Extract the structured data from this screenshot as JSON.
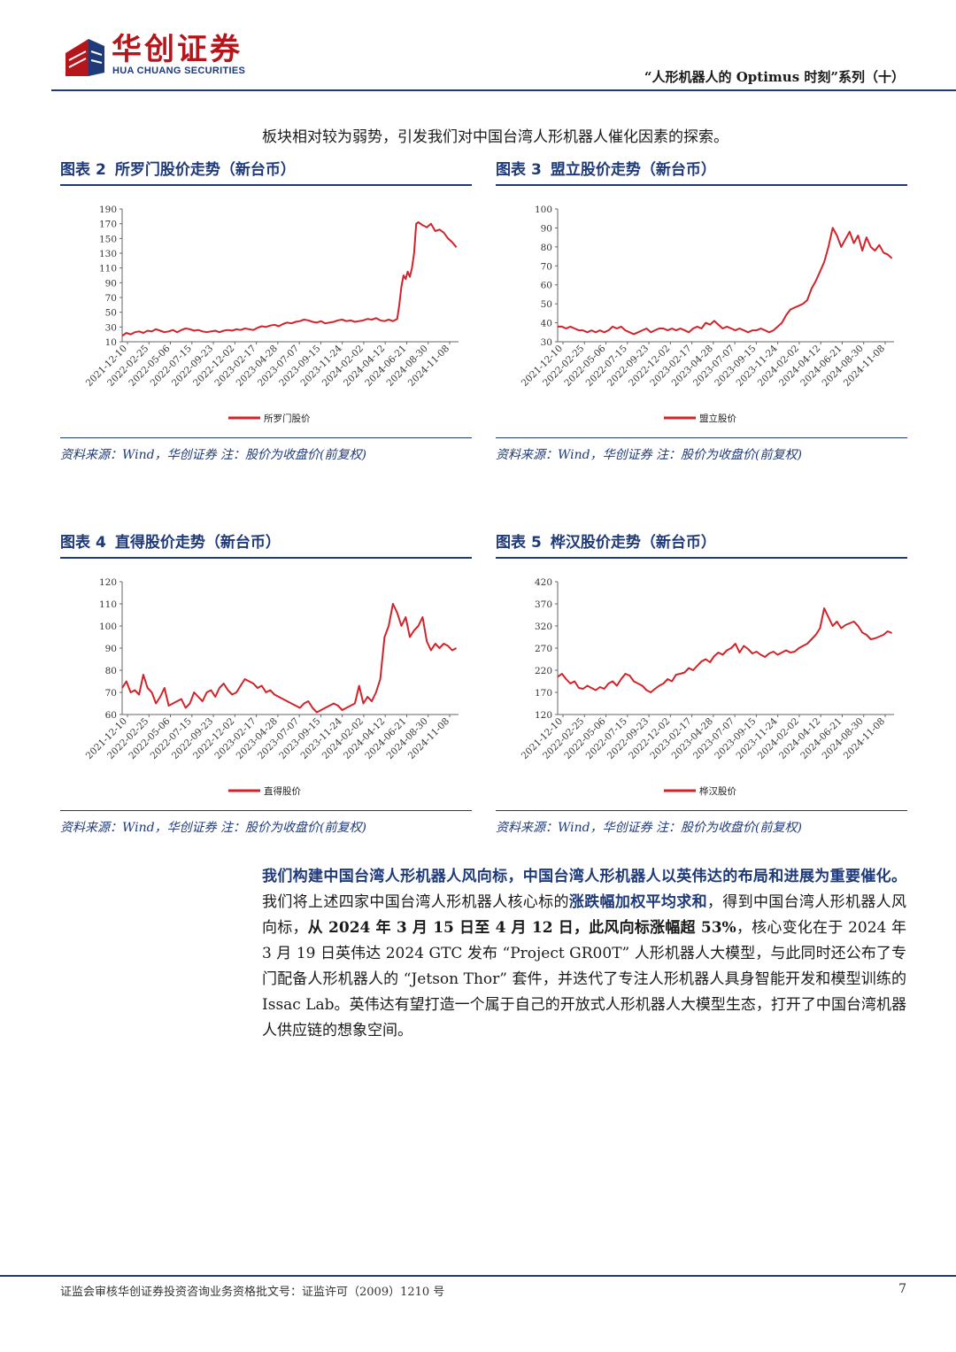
{
  "header": {
    "brand_cn": "华创证券",
    "brand_en": "HUA CHUANG SECURITIES",
    "series_title": "“人形机器人的 Optimus 时刻”系列（十）",
    "brand_colors": {
      "red": "#b4161b",
      "blue": "#1f3a78"
    }
  },
  "intro_text": "板块相对较为弱势，引发我们对中国台湾人形机器人催化因素的探索。",
  "figures": [
    {
      "label": "图表",
      "number": "2",
      "title": "所罗门股价走势（新台币）",
      "source": "资料来源：Wind，华创证券 注：股价为收盘价(前复权)"
    },
    {
      "label": "图表",
      "number": "3",
      "title": "盟立股价走势（新台币）",
      "source": "资料来源：Wind，华创证券 注：股价为收盘价(前复权)"
    },
    {
      "label": "图表",
      "number": "4",
      "title": "直得股价走势（新台币）",
      "source": "资料来源：Wind，华创证券 注：股价为收盘价(前复权)"
    },
    {
      "label": "图表",
      "number": "5",
      "title": "桦汉股价走势（新台币）",
      "source": "资料来源：Wind，华创证券 注：股价为收盘价(前复权)"
    }
  ],
  "chart_data": [
    {
      "type": "line",
      "series_color": "#d1232a",
      "x_ticks": [
        "2021-12-10",
        "2022-02-25",
        "2022-05-06",
        "2022-07-15",
        "2022-09-23",
        "2022-12-02",
        "2023-02-17",
        "2023-04-28",
        "2023-07-07",
        "2023-09-15",
        "2023-11-24",
        "2024-02-02",
        "2024-04-12",
        "2024-06-21",
        "2024-08-30",
        "2024-11-08"
      ],
      "y_ticks": [
        10,
        30,
        50,
        70,
        90,
        110,
        130,
        150,
        170,
        190
      ],
      "ylim": [
        10,
        190
      ],
      "x_range": [
        0,
        159
      ],
      "legend": "所罗门股价",
      "series": [
        {
          "name": "所罗门股价",
          "x": [
            0,
            2,
            4,
            6,
            8,
            10,
            12,
            14,
            16,
            18,
            20,
            22,
            24,
            26,
            28,
            30,
            32,
            34,
            36,
            38,
            40,
            42,
            44,
            46,
            48,
            50,
            52,
            54,
            56,
            58,
            60,
            62,
            64,
            66,
            68,
            70,
            72,
            74,
            76,
            78,
            80,
            82,
            84,
            86,
            88,
            90,
            92,
            94,
            96,
            98,
            100,
            102,
            104,
            106,
            108,
            110,
            112,
            114,
            116,
            118,
            120,
            122,
            124,
            126,
            128,
            130,
            131,
            132,
            133,
            134,
            135,
            136,
            137,
            138,
            139,
            140,
            142,
            144,
            146,
            148,
            150,
            152,
            154,
            156,
            158
          ],
          "y": [
            18,
            22,
            20,
            23,
            24,
            22,
            25,
            24,
            27,
            25,
            23,
            24,
            26,
            23,
            26,
            28,
            27,
            25,
            26,
            24,
            23,
            24,
            25,
            23,
            25,
            26,
            25,
            27,
            26,
            28,
            27,
            26,
            29,
            31,
            30,
            32,
            33,
            31,
            34,
            36,
            35,
            37,
            38,
            40,
            39,
            37,
            36,
            38,
            35,
            36,
            37,
            39,
            40,
            38,
            39,
            37,
            38,
            39,
            41,
            40,
            42,
            39,
            38,
            40,
            38,
            41,
            60,
            85,
            100,
            95,
            105,
            98,
            110,
            130,
            170,
            172,
            168,
            165,
            170,
            160,
            162,
            158,
            150,
            145,
            138
          ]
        }
      ]
    },
    {
      "type": "line",
      "series_color": "#d1232a",
      "x_ticks": [
        "2021-12-10",
        "2022-02-25",
        "2022-05-06",
        "2022-07-15",
        "2022-09-23",
        "2022-12-02",
        "2023-02-17",
        "2023-04-28",
        "2023-07-07",
        "2023-09-15",
        "2023-11-24",
        "2024-02-02",
        "2024-04-12",
        "2024-06-21",
        "2024-08-30",
        "2024-11-08"
      ],
      "y_ticks": [
        30,
        40,
        50,
        60,
        70,
        80,
        90,
        100
      ],
      "ylim": [
        30,
        100
      ],
      "x_range": [
        0,
        159
      ],
      "legend": "盟立股价",
      "series": [
        {
          "name": "盟立股价",
          "x": [
            0,
            2,
            4,
            6,
            8,
            10,
            12,
            14,
            16,
            18,
            20,
            22,
            24,
            26,
            28,
            30,
            32,
            34,
            36,
            38,
            40,
            42,
            44,
            46,
            48,
            50,
            52,
            54,
            56,
            58,
            60,
            62,
            64,
            66,
            68,
            70,
            72,
            74,
            76,
            78,
            80,
            82,
            84,
            86,
            88,
            90,
            92,
            94,
            96,
            98,
            100,
            102,
            104,
            106,
            108,
            110,
            112,
            114,
            116,
            118,
            120,
            122,
            124,
            126,
            128,
            130,
            132,
            134,
            136,
            138,
            140,
            142,
            144,
            146,
            148,
            150,
            152,
            154,
            156,
            158
          ],
          "y": [
            38,
            38,
            37,
            38,
            37,
            36,
            36,
            35,
            36,
            35,
            36,
            35,
            36,
            38,
            37,
            38,
            36,
            35,
            34,
            35,
            36,
            37,
            35,
            36,
            37,
            37,
            36,
            37,
            36,
            37,
            36,
            35,
            37,
            38,
            37,
            40,
            39,
            41,
            39,
            37,
            38,
            37,
            36,
            37,
            36,
            35,
            36,
            36,
            37,
            36,
            35,
            36,
            38,
            40,
            44,
            47,
            48,
            49,
            50,
            52,
            58,
            62,
            67,
            72,
            80,
            90,
            86,
            80,
            84,
            88,
            82,
            86,
            78,
            85,
            80,
            78,
            81,
            77,
            76,
            74
          ]
        }
      ]
    },
    {
      "type": "line",
      "series_color": "#d1232a",
      "x_ticks": [
        "2021-12-10",
        "2022-02-25",
        "2022-05-06",
        "2022-07-15",
        "2022-09-23",
        "2022-12-02",
        "2023-02-17",
        "2023-04-28",
        "2023-07-07",
        "2023-09-15",
        "2023-11-24",
        "2024-02-02",
        "2024-04-12",
        "2024-06-21",
        "2024-08-30",
        "2024-11-08"
      ],
      "y_ticks": [
        60,
        70,
        80,
        90,
        100,
        110,
        120
      ],
      "ylim": [
        60,
        120
      ],
      "x_range": [
        0,
        159
      ],
      "legend": "直得股价",
      "series": [
        {
          "name": "直得股价",
          "x": [
            0,
            2,
            4,
            6,
            8,
            10,
            12,
            14,
            16,
            18,
            20,
            22,
            24,
            26,
            28,
            30,
            32,
            34,
            36,
            38,
            40,
            42,
            44,
            46,
            48,
            50,
            52,
            54,
            56,
            58,
            60,
            62,
            64,
            66,
            68,
            70,
            72,
            74,
            76,
            78,
            80,
            82,
            84,
            86,
            88,
            90,
            92,
            94,
            96,
            98,
            100,
            102,
            104,
            106,
            108,
            110,
            112,
            114,
            116,
            118,
            120,
            122,
            124,
            126,
            128,
            130,
            132,
            134,
            136,
            138,
            140,
            142,
            144,
            146,
            148,
            150,
            152,
            154,
            156,
            158
          ],
          "y": [
            72,
            75,
            70,
            71,
            69,
            78,
            72,
            70,
            65,
            68,
            72,
            64,
            65,
            66,
            67,
            63,
            65,
            70,
            68,
            66,
            70,
            71,
            68,
            72,
            74,
            71,
            69,
            70,
            73,
            76,
            75,
            74,
            72,
            73,
            70,
            71,
            69,
            68,
            67,
            66,
            65,
            64,
            63,
            65,
            66,
            63,
            61,
            62,
            63,
            64,
            65,
            64,
            62,
            63,
            64,
            65,
            73,
            65,
            68,
            66,
            70,
            76,
            95,
            100,
            110,
            106,
            100,
            104,
            95,
            98,
            100,
            104,
            93,
            89,
            92,
            90,
            92,
            91,
            89,
            90
          ]
        }
      ]
    },
    {
      "type": "line",
      "series_color": "#d1232a",
      "x_ticks": [
        "2021-12-10",
        "2022-02-25",
        "2022-05-06",
        "2022-07-15",
        "2022-09-23",
        "2022-12-02",
        "2023-02-17",
        "2023-04-28",
        "2023-07-07",
        "2023-09-15",
        "2023-11-24",
        "2024-02-02",
        "2024-04-12",
        "2024-06-21",
        "2024-08-30",
        "2024-11-08"
      ],
      "y_ticks": [
        120,
        170,
        220,
        270,
        320,
        370,
        420
      ],
      "ylim": [
        120,
        420
      ],
      "x_range": [
        0,
        159
      ],
      "legend": "桦汉股价",
      "series": [
        {
          "name": "桦汉股价",
          "x": [
            0,
            2,
            4,
            6,
            8,
            10,
            12,
            14,
            16,
            18,
            20,
            22,
            24,
            26,
            28,
            30,
            32,
            34,
            36,
            38,
            40,
            42,
            44,
            46,
            48,
            50,
            52,
            54,
            56,
            58,
            60,
            62,
            64,
            66,
            68,
            70,
            72,
            74,
            76,
            78,
            80,
            82,
            84,
            86,
            88,
            90,
            92,
            94,
            96,
            98,
            100,
            102,
            104,
            106,
            108,
            110,
            112,
            114,
            116,
            118,
            120,
            122,
            124,
            126,
            128,
            130,
            132,
            134,
            136,
            138,
            140,
            142,
            144,
            146,
            148,
            150,
            152,
            154,
            156,
            158
          ],
          "y": [
            205,
            212,
            200,
            190,
            195,
            180,
            178,
            185,
            180,
            175,
            182,
            178,
            190,
            195,
            185,
            200,
            212,
            208,
            195,
            190,
            185,
            175,
            170,
            178,
            185,
            190,
            200,
            195,
            210,
            212,
            215,
            225,
            220,
            230,
            240,
            245,
            238,
            252,
            260,
            255,
            265,
            270,
            280,
            260,
            275,
            268,
            258,
            262,
            255,
            250,
            258,
            262,
            255,
            260,
            265,
            260,
            262,
            270,
            275,
            280,
            290,
            300,
            315,
            360,
            340,
            320,
            330,
            315,
            322,
            326,
            330,
            320,
            305,
            300,
            290,
            292,
            296,
            300,
            308,
            304
          ]
        }
      ]
    }
  ],
  "paragraph": {
    "p1_highlight": "我们构建中国台湾人形机器人风向标，中国台湾人形机器人以英伟达的布局和进展为重要催化。",
    "p2": "我们将上述四家中国台湾人形机器人核心标的",
    "p3_bold": "涨跌幅加权平均求和",
    "p4": "，得到中国台湾人形机器人风向标，",
    "p5_bold": "从 2024 年 3 月 15 日至 4 月 12 日，此风向标涨幅超 53%",
    "p6": "，核心变化在于 2024 年 3 月 19 日英伟达 2024 GTC 发布 “Project GR00T” 人形机器人大模型，与此同时还公布了专门配备人形机器人的 “Jetson Thor” 套件，并迭代了专注人形机器人具身智能开发和模型训练的 Issac Lab。英伟达有望打造一个属于自己的开放式人形机器人大模型生态，打开了中国台湾机器人供应链的想象空间。"
  },
  "footer": {
    "text": "证监会审核华创证券投资咨询业务资格批文号：证监许可（2009）1210 号",
    "page": "7"
  }
}
